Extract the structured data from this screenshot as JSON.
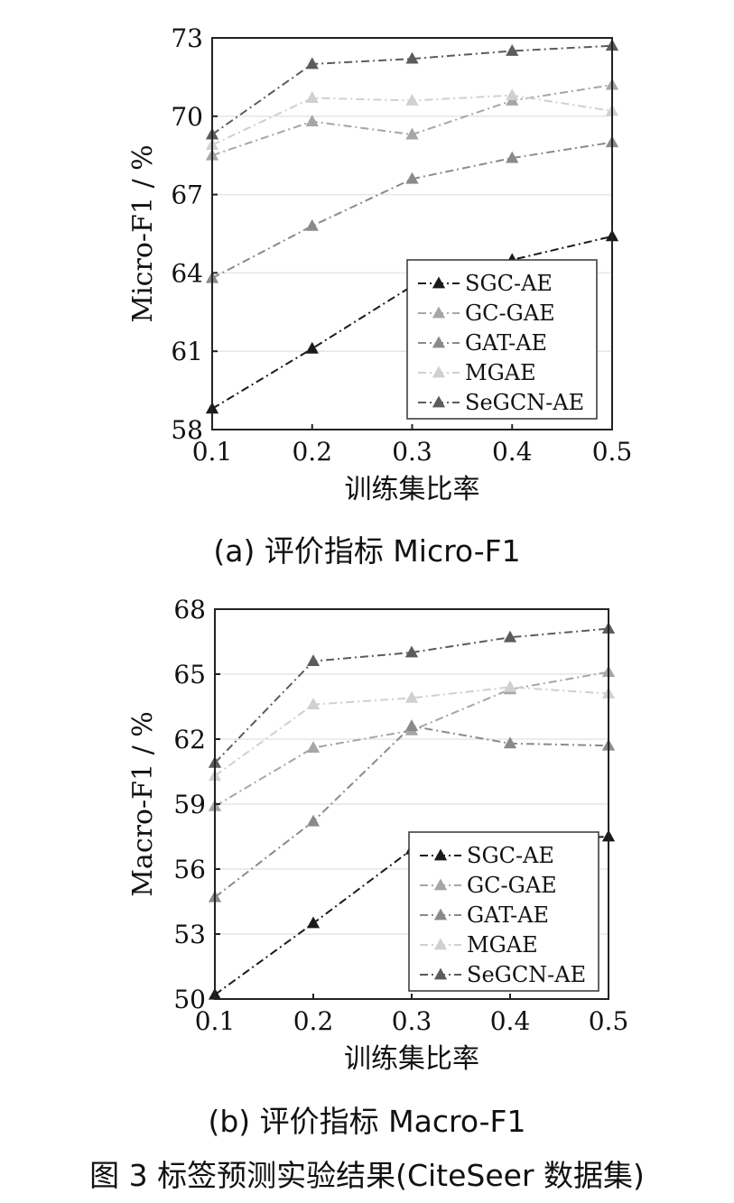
{
  "captions": {
    "a": "(a) 评价指标 Micro-F1",
    "b": "(b) 评价指标 Macro-F1",
    "figure": "图 3 标签预测实验结果(CiteSeer 数据集)"
  },
  "chart_data": [
    {
      "type": "line",
      "title": "",
      "xlabel": "训练集比率",
      "ylabel": "Micro-F1 / %",
      "x": [
        0.1,
        0.2,
        0.3,
        0.4,
        0.5
      ],
      "xticks": [
        "0.1",
        "0.2",
        "0.3",
        "0.4",
        "0.5"
      ],
      "yticks": [
        58,
        61,
        64,
        67,
        70,
        73
      ],
      "ylim": [
        58,
        73
      ],
      "grid": true,
      "legend_position": "bottom-right",
      "series": [
        {
          "name": "SGC-AE",
          "values": [
            58.8,
            61.1,
            63.5,
            64.5,
            65.4
          ],
          "color": "#1a1a1a"
        },
        {
          "name": "GC-GAE",
          "values": [
            68.5,
            69.8,
            69.3,
            70.6,
            71.2
          ],
          "color": "#a6a6a6"
        },
        {
          "name": "GAT-AE",
          "values": [
            63.8,
            65.8,
            67.6,
            68.4,
            69.0
          ],
          "color": "#8a8a8a"
        },
        {
          "name": "MGAE",
          "values": [
            68.9,
            70.7,
            70.6,
            70.8,
            70.2
          ],
          "color": "#d0d0d0"
        },
        {
          "name": "SeGCN-AE",
          "values": [
            69.3,
            72.0,
            72.2,
            72.5,
            72.7
          ],
          "color": "#5c5c5c"
        }
      ]
    },
    {
      "type": "line",
      "title": "",
      "xlabel": "训练集比率",
      "ylabel": "Macro-F1 / %",
      "x": [
        0.1,
        0.2,
        0.3,
        0.4,
        0.5
      ],
      "xticks": [
        "0.1",
        "0.2",
        "0.3",
        "0.4",
        "0.5"
      ],
      "yticks": [
        50,
        53,
        56,
        59,
        62,
        65,
        68
      ],
      "ylim": [
        50,
        68
      ],
      "grid": true,
      "legend_position": "bottom-right",
      "series": [
        {
          "name": "SGC-AE",
          "values": [
            50.2,
            53.5,
            56.9,
            57.3,
            57.5
          ],
          "color": "#1a1a1a"
        },
        {
          "name": "GC-GAE",
          "values": [
            58.9,
            61.6,
            62.4,
            64.3,
            65.1
          ],
          "color": "#a6a6a6"
        },
        {
          "name": "GAT-AE",
          "values": [
            54.7,
            58.2,
            62.6,
            61.8,
            61.7
          ],
          "color": "#8a8a8a"
        },
        {
          "name": "MGAE",
          "values": [
            60.3,
            63.6,
            63.9,
            64.4,
            64.1
          ],
          "color": "#d0d0d0"
        },
        {
          "name": "SeGCN-AE",
          "values": [
            60.9,
            65.6,
            66.0,
            66.7,
            67.1
          ],
          "color": "#5c5c5c"
        }
      ]
    }
  ]
}
